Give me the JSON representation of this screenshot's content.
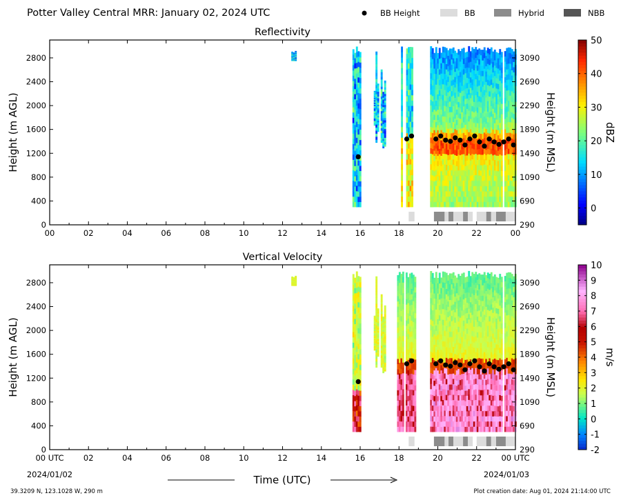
{
  "header": {
    "title": "Potter Valley Central MRR:  January 02, 2024 UTC",
    "legend": [
      {
        "label": "BB Height",
        "kind": "dot",
        "color": "#000000"
      },
      {
        "label": "BB",
        "kind": "box",
        "color": "#dcdcdc"
      },
      {
        "label": "Hybrid",
        "kind": "box",
        "color": "#8c8c8c"
      },
      {
        "label": "NBB",
        "kind": "box",
        "color": "#555555"
      }
    ]
  },
  "footer": {
    "location": "39.3209 N, 123.1028 W, 290 m",
    "creation": "Plot creation date: Aug 01, 2024 21:14:00 UTC",
    "xlabel": "Time (UTC)",
    "start_date": "2024/01/02",
    "end_date": "2024/01/03"
  },
  "chart_data": [
    {
      "type": "heatmap",
      "title": "Reflectivity",
      "ylabel": "Height (m AGL)",
      "y2label": "Height (m MSL)",
      "xlim": [
        0,
        24
      ],
      "ylim": [
        0,
        3100
      ],
      "x_ticks": [
        "00",
        "02",
        "04",
        "06",
        "08",
        "10",
        "12",
        "14",
        "16",
        "18",
        "20",
        "22",
        "00"
      ],
      "y_ticks": [
        0,
        400,
        800,
        1200,
        1600,
        2000,
        2400,
        2800
      ],
      "y2_ticks": [
        290,
        690,
        1090,
        1490,
        1890,
        2290,
        2690,
        3090
      ],
      "colorbar": {
        "label": "dBZ",
        "min": -5,
        "max": 50,
        "ticks": [
          0,
          10,
          20,
          30,
          40,
          50
        ]
      },
      "echo_periods": [
        {
          "start": 12.45,
          "end": 12.65,
          "bottom": 2750,
          "top": 3000
        },
        {
          "start": 15.6,
          "end": 16.15,
          "bottom": 300,
          "top": 3000
        },
        {
          "start": 16.7,
          "end": 17.3,
          "bottom": 1200,
          "top": 3000
        },
        {
          "start": 18.1,
          "end": 18.8,
          "bottom": 300,
          "top": 3000
        },
        {
          "start": 19.6,
          "end": 24.0,
          "bottom": 300,
          "top": 3000
        }
      ],
      "bb_height": [
        {
          "time": 15.9,
          "height": 1140
        },
        {
          "time": 18.4,
          "height": 1440
        },
        {
          "time": 18.65,
          "height": 1490
        },
        {
          "time": 19.9,
          "height": 1440
        },
        {
          "time": 20.15,
          "height": 1490
        },
        {
          "time": 20.4,
          "height": 1420
        },
        {
          "time": 20.65,
          "height": 1400
        },
        {
          "time": 20.9,
          "height": 1460
        },
        {
          "time": 21.15,
          "height": 1420
        },
        {
          "time": 21.4,
          "height": 1340
        },
        {
          "time": 21.65,
          "height": 1440
        },
        {
          "time": 21.9,
          "height": 1490
        },
        {
          "time": 22.15,
          "height": 1390
        },
        {
          "time": 22.4,
          "height": 1320
        },
        {
          "time": 22.65,
          "height": 1440
        },
        {
          "time": 22.9,
          "height": 1390
        },
        {
          "time": 23.15,
          "height": 1350
        },
        {
          "time": 23.4,
          "height": 1390
        },
        {
          "time": 23.65,
          "height": 1440
        },
        {
          "time": 23.9,
          "height": 1340
        }
      ],
      "bb_type": [
        {
          "start": 18.5,
          "end": 18.8,
          "type": "BB"
        },
        {
          "start": 19.8,
          "end": 20.35,
          "type": "Hybrid"
        },
        {
          "start": 20.35,
          "end": 20.55,
          "type": "BB"
        },
        {
          "start": 20.55,
          "end": 20.8,
          "type": "Hybrid"
        },
        {
          "start": 20.8,
          "end": 21.3,
          "type": "BB"
        },
        {
          "start": 21.3,
          "end": 21.55,
          "type": "Hybrid"
        },
        {
          "start": 21.55,
          "end": 21.8,
          "type": "BB"
        },
        {
          "start": 22.0,
          "end": 22.5,
          "type": "BB"
        },
        {
          "start": 22.5,
          "end": 22.75,
          "type": "Hybrid"
        },
        {
          "start": 22.75,
          "end": 23.0,
          "type": "BB"
        },
        {
          "start": 23.0,
          "end": 23.5,
          "type": "Hybrid"
        },
        {
          "start": 23.5,
          "end": 24.0,
          "type": "BB"
        }
      ]
    },
    {
      "type": "heatmap",
      "title": "Vertical Velocity",
      "ylabel": "Height (m AGL)",
      "y2label": "Height (m MSL)",
      "xlim": [
        0,
        24
      ],
      "ylim": [
        0,
        3100
      ],
      "x_ticks": [
        "00 UTC",
        "02",
        "04",
        "06",
        "08",
        "10",
        "12",
        "14",
        "16",
        "18",
        "20",
        "22",
        "00 UTC"
      ],
      "y_ticks": [
        0,
        400,
        800,
        1200,
        1600,
        2000,
        2400,
        2800
      ],
      "y2_ticks": [
        290,
        690,
        1090,
        1490,
        1890,
        2290,
        2690,
        3090
      ],
      "colorbar": {
        "label": "m/s",
        "min": -2,
        "max": 10,
        "ticks": [
          -2,
          -1,
          0,
          1,
          2,
          3,
          4,
          5,
          6,
          7,
          8,
          9,
          10
        ]
      },
      "echo_periods": [
        {
          "start": 12.45,
          "end": 12.65,
          "bottom": 2750,
          "top": 3000
        },
        {
          "start": 15.6,
          "end": 16.15,
          "bottom": 300,
          "top": 3000
        },
        {
          "start": 16.7,
          "end": 17.3,
          "bottom": 1200,
          "top": 3000
        },
        {
          "start": 17.9,
          "end": 18.8,
          "bottom": 300,
          "top": 3000
        },
        {
          "start": 19.6,
          "end": 24.0,
          "bottom": 300,
          "top": 3000
        }
      ],
      "bb_height": [
        {
          "time": 15.9,
          "height": 1140
        },
        {
          "time": 18.4,
          "height": 1440
        },
        {
          "time": 18.65,
          "height": 1490
        },
        {
          "time": 19.9,
          "height": 1440
        },
        {
          "time": 20.15,
          "height": 1490
        },
        {
          "time": 20.4,
          "height": 1420
        },
        {
          "time": 20.65,
          "height": 1400
        },
        {
          "time": 20.9,
          "height": 1460
        },
        {
          "time": 21.15,
          "height": 1420
        },
        {
          "time": 21.4,
          "height": 1340
        },
        {
          "time": 21.65,
          "height": 1440
        },
        {
          "time": 21.9,
          "height": 1490
        },
        {
          "time": 22.15,
          "height": 1390
        },
        {
          "time": 22.4,
          "height": 1320
        },
        {
          "time": 22.65,
          "height": 1440
        },
        {
          "time": 22.9,
          "height": 1390
        },
        {
          "time": 23.15,
          "height": 1350
        },
        {
          "time": 23.4,
          "height": 1390
        },
        {
          "time": 23.65,
          "height": 1440
        },
        {
          "time": 23.9,
          "height": 1340
        }
      ],
      "bb_type": [
        {
          "start": 18.5,
          "end": 18.8,
          "type": "BB"
        },
        {
          "start": 19.8,
          "end": 20.35,
          "type": "Hybrid"
        },
        {
          "start": 20.35,
          "end": 20.55,
          "type": "BB"
        },
        {
          "start": 20.55,
          "end": 20.8,
          "type": "Hybrid"
        },
        {
          "start": 20.8,
          "end": 21.3,
          "type": "BB"
        },
        {
          "start": 21.3,
          "end": 21.55,
          "type": "Hybrid"
        },
        {
          "start": 21.55,
          "end": 21.8,
          "type": "BB"
        },
        {
          "start": 22.0,
          "end": 22.5,
          "type": "BB"
        },
        {
          "start": 22.5,
          "end": 22.75,
          "type": "Hybrid"
        },
        {
          "start": 22.75,
          "end": 23.0,
          "type": "BB"
        },
        {
          "start": 23.0,
          "end": 23.5,
          "type": "Hybrid"
        },
        {
          "start": 23.5,
          "end": 24.0,
          "type": "BB"
        }
      ]
    }
  ]
}
